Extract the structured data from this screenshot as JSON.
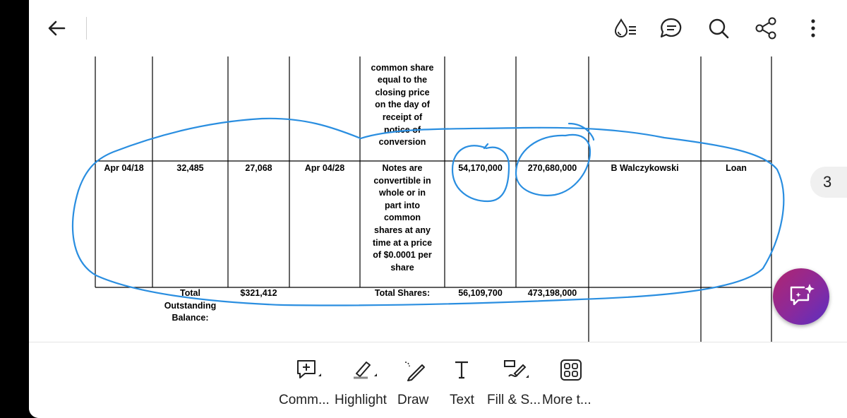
{
  "page_indicator": "3",
  "table": {
    "upper_remarks": [
      "common share",
      "equal to the",
      "closing price",
      "on the day of",
      "receipt of",
      "notice of",
      "conversion"
    ],
    "row": {
      "issue_date": "Apr 04/18",
      "principal": "32,485",
      "balance": "27,068",
      "maturity": "Apr 04/28",
      "terms": [
        "Notes are",
        "convertible in",
        "whole or in",
        "part into",
        "common",
        "shares at any",
        "time at a price",
        "of $0.0001 per",
        "share"
      ],
      "shares_1": "54,170,000",
      "shares_2": "270,680,000",
      "holder": "B Walczykowski",
      "type": "Loan"
    },
    "totals": {
      "balance_label": [
        "Total",
        "Outstanding",
        "Balance:"
      ],
      "balance_value": "$321,412",
      "shares_label": "Total Shares:",
      "shares_1_total": "56,109,700",
      "shares_2_total": "473,198,000"
    }
  },
  "toolbar": {
    "items": [
      {
        "label": "Comm..."
      },
      {
        "label": "Highlight"
      },
      {
        "label": "Draw"
      },
      {
        "label": "Text"
      },
      {
        "label": "Fill & S..."
      },
      {
        "label": "More t..."
      }
    ]
  },
  "colors": {
    "accent_ink": "#2a8ee0",
    "fab_start": "#b0256f",
    "fab_end": "#5a2fc2"
  }
}
